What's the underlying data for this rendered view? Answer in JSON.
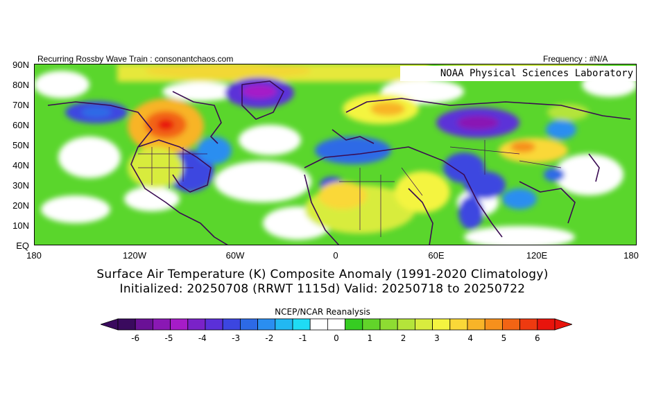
{
  "header": {
    "left": "Recurring Rossby Wave Train : consonantchaos.com",
    "right": "Frequency : #N/A"
  },
  "map": {
    "lab_label": "NOAA Physical Sciences Laboratory",
    "lat_labels": [
      "90N",
      "80N",
      "70N",
      "60N",
      "50N",
      "40N",
      "30N",
      "20N",
      "10N",
      "EQ"
    ],
    "lon_labels": [
      "180",
      "120W",
      "60W",
      "0",
      "60E",
      "120E",
      "180"
    ]
  },
  "title": {
    "line1": "Surface Air Temperature (K) Composite Anomaly (1991-2020 Climatology)",
    "line2": "Initialized: 20250708 (RRWT 1115d) Valid: 20250718 to 20250722"
  },
  "colorbar": {
    "title": "NCEP/NCAR Reanalysis",
    "ticks": [
      "-6",
      "-5",
      "-4",
      "-3",
      "-2",
      "-1",
      "0",
      "1",
      "2",
      "3",
      "4",
      "5",
      "6"
    ],
    "colors": [
      "#3a0a5e",
      "#6a1196",
      "#8a18b4",
      "#a61cc8",
      "#7a22c8",
      "#5b30d8",
      "#3c46e0",
      "#2d6ae6",
      "#2a8ef0",
      "#22b8f2",
      "#1fdcf4",
      "#ffffff",
      "#ffffff",
      "#36cc22",
      "#62d42a",
      "#8edc32",
      "#b4e43a",
      "#d8ec3e",
      "#f4f440",
      "#fad838",
      "#f8b428",
      "#f6901c",
      "#f26414",
      "#ee3a10",
      "#e8140c"
    ]
  }
}
